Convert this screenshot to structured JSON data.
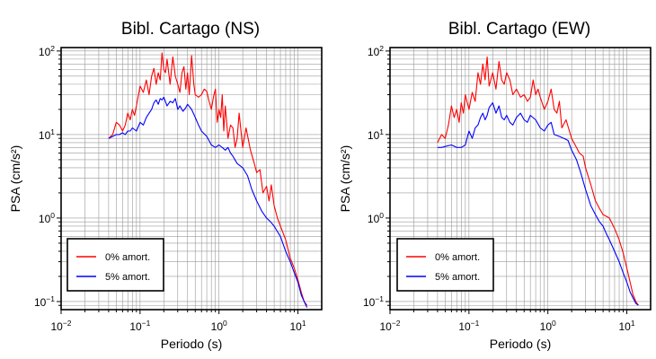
{
  "chart_data": [
    {
      "type": "line",
      "title": "Bibl. Cartago (NS)",
      "xlabel": "Periodo (s)",
      "ylabel": "PSA (cm/s²)",
      "xscale": "log",
      "yscale": "log",
      "xlim": [
        0.01,
        20
      ],
      "ylim": [
        0.08,
        110
      ],
      "grid": true,
      "legend_position": "bottom-left",
      "x_tick_labels": [
        {
          "base": "10",
          "exp": "−2"
        },
        {
          "base": "10",
          "exp": "−1"
        },
        {
          "base": "10",
          "exp": "0"
        },
        {
          "base": "10",
          "exp": "1"
        }
      ],
      "y_tick_labels": [
        "10⁻¹",
        "10⁰",
        "10¹",
        "10²"
      ],
      "series": [
        {
          "name": "0% amort.",
          "color": "#ff0000",
          "x": [
            0.04,
            0.045,
            0.05,
            0.055,
            0.06,
            0.065,
            0.07,
            0.075,
            0.08,
            0.085,
            0.09,
            0.1,
            0.11,
            0.12,
            0.13,
            0.14,
            0.15,
            0.16,
            0.17,
            0.18,
            0.19,
            0.2,
            0.21,
            0.22,
            0.24,
            0.26,
            0.28,
            0.3,
            0.32,
            0.34,
            0.36,
            0.38,
            0.4,
            0.42,
            0.45,
            0.48,
            0.5,
            0.55,
            0.6,
            0.65,
            0.7,
            0.75,
            0.8,
            0.85,
            0.9,
            0.95,
            1.0,
            1.05,
            1.1,
            1.15,
            1.2,
            1.3,
            1.4,
            1.5,
            1.6,
            1.7,
            1.8,
            2.0,
            2.2,
            2.5,
            2.8,
            3.0,
            3.3,
            3.6,
            4.0,
            4.3,
            4.6,
            5.0,
            5.5,
            6.0,
            7.0,
            8.0,
            9.0,
            10.0,
            11.0,
            12.0,
            13.0
          ],
          "y": [
            9,
            10,
            14,
            13,
            11,
            13,
            18,
            15,
            20,
            17,
            22,
            38,
            32,
            45,
            30,
            50,
            62,
            40,
            55,
            45,
            95,
            60,
            55,
            80,
            40,
            85,
            50,
            40,
            32,
            55,
            65,
            35,
            55,
            30,
            88,
            40,
            30,
            28,
            30,
            35,
            33,
            25,
            20,
            28,
            35,
            14,
            20,
            16,
            30,
            11,
            22,
            9,
            13,
            12,
            7,
            9,
            18,
            7,
            12,
            6.5,
            4.5,
            3.5,
            3.8,
            2.0,
            2.4,
            1.6,
            2.5,
            1.4,
            1.0,
            0.8,
            0.55,
            0.33,
            0.25,
            0.18,
            0.13,
            0.1,
            0.09
          ]
        },
        {
          "name": "5% amort.",
          "color": "#0000ff",
          "x": [
            0.04,
            0.045,
            0.05,
            0.055,
            0.06,
            0.065,
            0.07,
            0.075,
            0.08,
            0.09,
            0.1,
            0.11,
            0.12,
            0.13,
            0.14,
            0.15,
            0.16,
            0.17,
            0.18,
            0.19,
            0.2,
            0.22,
            0.24,
            0.26,
            0.28,
            0.3,
            0.32,
            0.35,
            0.38,
            0.4,
            0.45,
            0.5,
            0.55,
            0.6,
            0.7,
            0.8,
            0.9,
            1.0,
            1.1,
            1.2,
            1.3,
            1.4,
            1.5,
            1.7,
            2.0,
            2.3,
            2.6,
            3.0,
            3.5,
            4.0,
            4.5,
            5.0,
            6.0,
            7.0,
            8.0,
            9.0,
            10.0,
            11.0,
            12.0,
            13.0
          ],
          "y": [
            9,
            9.5,
            10,
            10,
            10.5,
            10,
            11,
            11,
            12,
            11,
            14,
            13,
            16,
            18,
            20,
            24,
            26,
            23,
            27,
            26,
            28,
            22,
            25,
            24,
            27,
            20,
            22,
            19,
            21,
            23,
            20,
            16,
            13,
            11,
            9.5,
            7.5,
            7,
            7.5,
            7,
            6.5,
            7,
            6,
            5.5,
            4.5,
            4.0,
            3.2,
            2.2,
            1.6,
            1.2,
            1.0,
            0.9,
            0.8,
            0.6,
            0.4,
            0.3,
            0.22,
            0.17,
            0.12,
            0.1,
            0.085
          ]
        }
      ]
    },
    {
      "type": "line",
      "title": "Bibl. Cartago (EW)",
      "xlabel": "Periodo (s)",
      "ylabel": "PSA (cm/s²)",
      "xscale": "log",
      "yscale": "log",
      "xlim": [
        0.01,
        20
      ],
      "ylim": [
        0.08,
        110
      ],
      "grid": true,
      "legend_position": "bottom-left",
      "x_tick_labels": [
        {
          "base": "10",
          "exp": "−2"
        },
        {
          "base": "10",
          "exp": "−1"
        },
        {
          "base": "10",
          "exp": "0"
        },
        {
          "base": "10",
          "exp": "1"
        }
      ],
      "y_tick_labels": [
        "10⁻¹",
        "10⁰",
        "10¹",
        "10²"
      ],
      "series": [
        {
          "name": "0% amort.",
          "color": "#ff0000",
          "x": [
            0.04,
            0.045,
            0.05,
            0.055,
            0.06,
            0.065,
            0.07,
            0.075,
            0.08,
            0.085,
            0.09,
            0.1,
            0.11,
            0.12,
            0.13,
            0.14,
            0.15,
            0.16,
            0.17,
            0.18,
            0.2,
            0.22,
            0.24,
            0.26,
            0.28,
            0.3,
            0.33,
            0.36,
            0.4,
            0.45,
            0.5,
            0.55,
            0.6,
            0.65,
            0.7,
            0.75,
            0.8,
            0.9,
            1.0,
            1.1,
            1.2,
            1.3,
            1.4,
            1.5,
            1.7,
            2.0,
            2.3,
            2.5,
            2.8,
            3.0,
            3.5,
            4.0,
            4.5,
            5.0,
            5.5,
            6.0,
            7.0,
            8.0,
            9.0,
            10.0,
            11.0,
            12.0,
            13.0,
            14.0
          ],
          "y": [
            8,
            10,
            9,
            13,
            22,
            16,
            20,
            14,
            24,
            18,
            30,
            20,
            32,
            25,
            55,
            40,
            70,
            45,
            85,
            38,
            55,
            35,
            75,
            45,
            40,
            55,
            45,
            30,
            35,
            28,
            30,
            25,
            28,
            45,
            30,
            35,
            28,
            20,
            25,
            35,
            20,
            18,
            25,
            12,
            15,
            9,
            7,
            6,
            5.5,
            4.0,
            2.5,
            1.6,
            1.3,
            1.1,
            1.05,
            1.0,
            0.75,
            0.55,
            0.38,
            0.25,
            0.17,
            0.12,
            0.1,
            0.09
          ]
        },
        {
          "name": "5% amort.",
          "color": "#0000ff",
          "x": [
            0.04,
            0.045,
            0.05,
            0.06,
            0.07,
            0.08,
            0.09,
            0.1,
            0.11,
            0.12,
            0.13,
            0.14,
            0.15,
            0.16,
            0.17,
            0.18,
            0.2,
            0.22,
            0.24,
            0.26,
            0.28,
            0.3,
            0.33,
            0.36,
            0.4,
            0.45,
            0.5,
            0.55,
            0.6,
            0.7,
            0.8,
            0.9,
            1.0,
            1.1,
            1.2,
            1.4,
            1.6,
            1.8,
            2.0,
            2.3,
            2.6,
            3.0,
            3.5,
            4.0,
            4.5,
            5.0,
            5.5,
            6.0,
            7.0,
            8.0,
            9.0,
            10.0,
            11.0,
            12.0,
            13.0,
            14.0
          ],
          "y": [
            7,
            7,
            7.2,
            7.5,
            7,
            7,
            7.5,
            11,
            9,
            12,
            13,
            16,
            18,
            15,
            17,
            21,
            24,
            18,
            22,
            16,
            15,
            17,
            14,
            13,
            16,
            18,
            15,
            14,
            17,
            15,
            12,
            11,
            13,
            14,
            10,
            9.5,
            9,
            8.5,
            6.5,
            5.0,
            3.5,
            2.2,
            1.4,
            1.1,
            0.9,
            0.8,
            0.65,
            0.55,
            0.4,
            0.3,
            0.22,
            0.17,
            0.13,
            0.11,
            0.095,
            0.09
          ]
        }
      ]
    }
  ]
}
